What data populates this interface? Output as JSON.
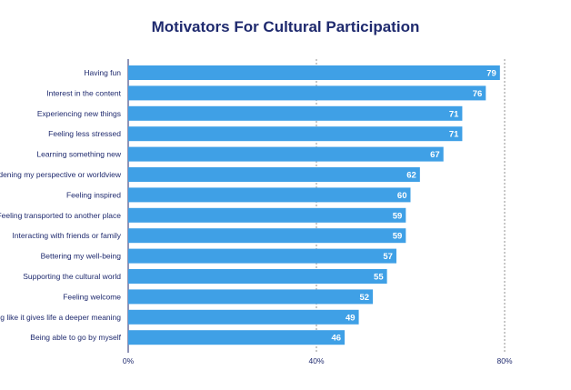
{
  "chart_data": {
    "type": "bar",
    "orientation": "horizontal",
    "title": "Motivators For Cultural Participation",
    "xlabel": "",
    "ylabel": "",
    "xlim": [
      0,
      80
    ],
    "ticks": [
      "0%",
      "40%",
      "80%"
    ],
    "tick_values": [
      0,
      40,
      80
    ],
    "grid": "dashed vertical at 40% and 80%",
    "bar_color": "#3fa0e6",
    "text_color": "#1f2a6e",
    "categories": [
      "Having fun",
      "Interest in the content",
      "Experiencing new things",
      "Feeling less stressed",
      "Learning something new",
      "Broadening my perspective or worldview",
      "Feeling inspired",
      "Feeling transported to another place",
      "Interacting with friends or family",
      "Bettering my well-being",
      "Supporting the cultural world",
      "Feeling welcome",
      "Feeling like it gives life a deeper meaning",
      "Being able to go by myself"
    ],
    "values": [
      79,
      76,
      71,
      71,
      67,
      62,
      60,
      59,
      59,
      57,
      55,
      52,
      49,
      46
    ]
  }
}
